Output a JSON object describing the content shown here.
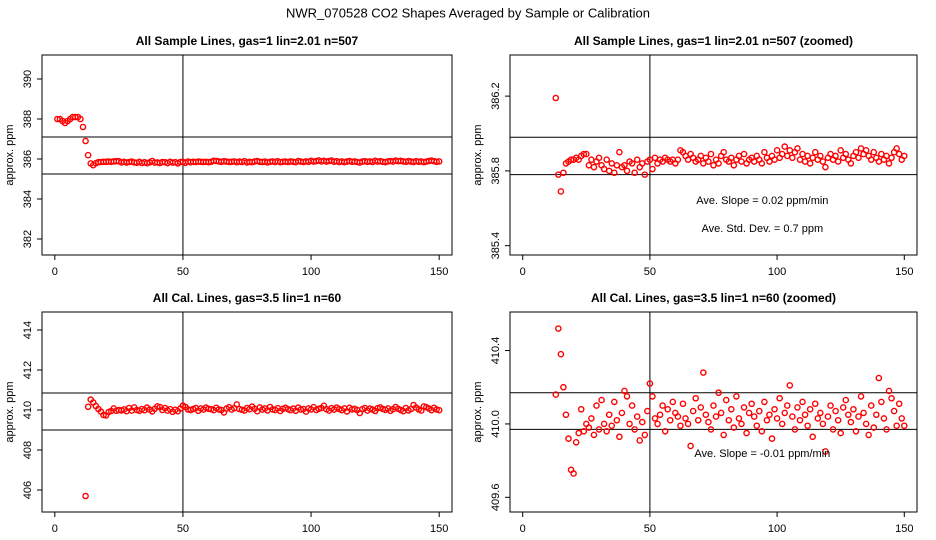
{
  "title": "NWR_070528  CO2 Shapes Averaged by Sample or Calibration",
  "chart_data": [
    {
      "type": "scatter",
      "title": "All Sample Lines, gas=1 lin=2.01 n=507",
      "ylabel": "approx. ppm",
      "color": "#ff0000",
      "xlim": [
        -5,
        155
      ],
      "ylim": [
        381.2,
        391.2
      ],
      "xticks": [
        0,
        50,
        100,
        150
      ],
      "yticks": [
        382,
        384,
        386,
        388,
        390
      ],
      "hlines": [
        387.1,
        385.25
      ],
      "vlines": [
        50
      ],
      "annotations": [],
      "x": [
        1,
        2,
        3,
        4,
        5,
        6,
        7,
        8,
        9,
        10,
        11,
        12,
        13,
        14,
        15,
        16,
        17,
        18,
        19,
        20,
        21,
        22,
        23,
        24,
        25,
        26,
        27,
        28,
        29,
        30,
        31,
        32,
        33,
        34,
        35,
        36,
        37,
        38,
        39,
        40,
        41,
        42,
        43,
        44,
        45,
        46,
        47,
        48,
        49,
        50,
        51,
        52,
        53,
        54,
        55,
        56,
        57,
        58,
        59,
        60,
        61,
        62,
        63,
        64,
        65,
        66,
        67,
        68,
        69,
        70,
        71,
        72,
        73,
        74,
        75,
        76,
        77,
        78,
        79,
        80,
        81,
        82,
        83,
        84,
        85,
        86,
        87,
        88,
        89,
        90,
        91,
        92,
        93,
        94,
        95,
        96,
        97,
        98,
        99,
        100,
        101,
        102,
        103,
        104,
        105,
        106,
        107,
        108,
        109,
        110,
        111,
        112,
        113,
        114,
        115,
        116,
        117,
        118,
        119,
        120,
        121,
        122,
        123,
        124,
        125,
        126,
        127,
        128,
        129,
        130,
        131,
        132,
        133,
        134,
        135,
        136,
        137,
        138,
        139,
        140,
        141,
        142,
        143,
        144,
        145,
        146,
        147,
        148,
        149,
        150
      ],
      "values": [
        388.0,
        388.0,
        387.9,
        387.8,
        387.9,
        388.0,
        388.1,
        388.1,
        388.1,
        388.0,
        387.6,
        386.9,
        386.19,
        385.78,
        385.69,
        385.79,
        385.84,
        385.85,
        385.86,
        385.86,
        385.87,
        385.86,
        385.88,
        385.89,
        385.89,
        385.83,
        385.86,
        385.82,
        385.85,
        385.87,
        385.83,
        385.81,
        385.86,
        385.8,
        385.84,
        385.79,
        385.83,
        385.9,
        385.82,
        385.83,
        385.8,
        385.85,
        385.84,
        385.79,
        385.86,
        385.82,
        385.84,
        385.78,
        385.85,
        385.86,
        385.81,
        385.87,
        385.84,
        385.86,
        385.85,
        385.87,
        385.86,
        385.85,
        385.86,
        385.84,
        385.86,
        385.91,
        385.9,
        385.88,
        385.86,
        385.89,
        385.87,
        385.85,
        385.86,
        385.88,
        385.84,
        385.87,
        385.85,
        385.89,
        385.83,
        385.86,
        385.84,
        385.88,
        385.9,
        385.86,
        385.85,
        385.87,
        385.83,
        385.86,
        385.88,
        385.85,
        385.89,
        385.84,
        385.86,
        385.87,
        385.85,
        385.88,
        385.86,
        385.84,
        385.9,
        385.87,
        385.85,
        385.88,
        385.86,
        385.91,
        385.87,
        385.89,
        385.93,
        385.88,
        385.91,
        385.87,
        385.9,
        385.92,
        385.86,
        385.89,
        385.85,
        385.88,
        385.84,
        385.87,
        385.9,
        385.86,
        385.88,
        385.85,
        385.82,
        385.87,
        385.89,
        385.86,
        385.88,
        385.85,
        385.91,
        385.87,
        385.89,
        385.86,
        385.84,
        385.88,
        385.9,
        385.87,
        385.92,
        385.89,
        385.91,
        385.88,
        385.86,
        385.9,
        385.87,
        385.85,
        385.89,
        385.86,
        385.88,
        385.84,
        385.87,
        385.9,
        385.92,
        385.89,
        385.86,
        385.88
      ]
    },
    {
      "type": "scatter",
      "title": "All Sample Lines, gas=1 lin=2.01 n=507 (zoomed)",
      "ylabel": "approx. ppm",
      "color": "#ff0000",
      "xlim": [
        -5,
        155
      ],
      "ylim": [
        385.35,
        386.42
      ],
      "xticks": [
        0,
        50,
        100,
        150
      ],
      "yticks": [
        385.4,
        385.8,
        386.2
      ],
      "hlines": [
        385.98,
        385.78
      ],
      "vlines": [
        50
      ],
      "annotations": [
        "Ave. Slope =  0.02  ppm/min",
        "Ave. Std. Dev. =  0.7  ppm"
      ],
      "x": [
        13,
        14,
        15,
        16,
        17,
        18,
        19,
        20,
        21,
        22,
        23,
        24,
        25,
        26,
        27,
        28,
        29,
        30,
        31,
        32,
        33,
        34,
        35,
        36,
        37,
        38,
        39,
        40,
        41,
        42,
        43,
        44,
        45,
        46,
        47,
        48,
        49,
        50,
        51,
        52,
        53,
        54,
        55,
        56,
        57,
        58,
        59,
        60,
        61,
        62,
        63,
        64,
        65,
        66,
        67,
        68,
        69,
        70,
        71,
        72,
        73,
        74,
        75,
        76,
        77,
        78,
        79,
        80,
        81,
        82,
        83,
        84,
        85,
        86,
        87,
        88,
        89,
        90,
        91,
        92,
        93,
        94,
        95,
        96,
        97,
        98,
        99,
        100,
        101,
        102,
        103,
        104,
        105,
        106,
        107,
        108,
        109,
        110,
        111,
        112,
        113,
        114,
        115,
        116,
        117,
        118,
        119,
        120,
        121,
        122,
        123,
        124,
        125,
        126,
        127,
        128,
        129,
        130,
        131,
        132,
        133,
        134,
        135,
        136,
        137,
        138,
        139,
        140,
        141,
        142,
        143,
        144,
        145,
        146,
        147,
        148,
        149,
        150
      ],
      "values": [
        386.19,
        385.78,
        385.69,
        385.79,
        385.84,
        385.85,
        385.86,
        385.86,
        385.87,
        385.86,
        385.88,
        385.89,
        385.89,
        385.83,
        385.86,
        385.82,
        385.85,
        385.87,
        385.83,
        385.81,
        385.86,
        385.8,
        385.84,
        385.79,
        385.83,
        385.9,
        385.82,
        385.83,
        385.8,
        385.85,
        385.84,
        385.79,
        385.86,
        385.82,
        385.84,
        385.78,
        385.85,
        385.86,
        385.81,
        385.87,
        385.84,
        385.86,
        385.85,
        385.87,
        385.86,
        385.85,
        385.86,
        385.84,
        385.86,
        385.91,
        385.9,
        385.88,
        385.86,
        385.89,
        385.87,
        385.85,
        385.86,
        385.88,
        385.84,
        385.87,
        385.85,
        385.89,
        385.83,
        385.86,
        385.84,
        385.88,
        385.9,
        385.86,
        385.85,
        385.87,
        385.83,
        385.86,
        385.88,
        385.85,
        385.89,
        385.84,
        385.86,
        385.87,
        385.85,
        385.88,
        385.86,
        385.84,
        385.9,
        385.87,
        385.85,
        385.88,
        385.86,
        385.91,
        385.87,
        385.89,
        385.93,
        385.88,
        385.91,
        385.87,
        385.9,
        385.92,
        385.86,
        385.89,
        385.85,
        385.88,
        385.84,
        385.87,
        385.9,
        385.86,
        385.88,
        385.85,
        385.82,
        385.87,
        385.89,
        385.86,
        385.88,
        385.85,
        385.91,
        385.87,
        385.89,
        385.86,
        385.84,
        385.88,
        385.9,
        385.87,
        385.92,
        385.89,
        385.91,
        385.88,
        385.86,
        385.9,
        385.87,
        385.85,
        385.89,
        385.86,
        385.88,
        385.84,
        385.87,
        385.9,
        385.92,
        385.89,
        385.86,
        385.88
      ]
    },
    {
      "type": "scatter",
      "title": "All Cal. Lines, gas=3.5 lin=1 n=60",
      "ylabel": "approx. ppm",
      "color": "#ff0000",
      "xlim": [
        -5,
        155
      ],
      "ylim": [
        404.9,
        414.9
      ],
      "xticks": [
        0,
        50,
        100,
        150
      ],
      "yticks": [
        406,
        408,
        410,
        412,
        414
      ],
      "hlines": [
        410.85,
        409.0
      ],
      "vlines": [
        50
      ],
      "annotations": [],
      "x": [
        12,
        13,
        14,
        15,
        16,
        17,
        18,
        19,
        20,
        21,
        22,
        23,
        24,
        25,
        26,
        27,
        28,
        29,
        30,
        31,
        32,
        33,
        34,
        35,
        36,
        37,
        38,
        39,
        40,
        41,
        42,
        43,
        44,
        45,
        46,
        47,
        48,
        49,
        50,
        51,
        52,
        53,
        54,
        55,
        56,
        57,
        58,
        59,
        60,
        61,
        62,
        63,
        64,
        65,
        66,
        67,
        68,
        69,
        70,
        71,
        72,
        73,
        74,
        75,
        76,
        77,
        78,
        79,
        80,
        81,
        82,
        83,
        84,
        85,
        86,
        87,
        88,
        89,
        90,
        91,
        92,
        93,
        94,
        95,
        96,
        97,
        98,
        99,
        100,
        101,
        102,
        103,
        104,
        105,
        106,
        107,
        108,
        109,
        110,
        111,
        112,
        113,
        114,
        115,
        116,
        117,
        118,
        119,
        120,
        121,
        122,
        123,
        124,
        125,
        126,
        127,
        128,
        129,
        130,
        131,
        132,
        133,
        134,
        135,
        136,
        137,
        138,
        139,
        140,
        141,
        142,
        143,
        144,
        145,
        146,
        147,
        148,
        149,
        150
      ],
      "values": [
        405.7,
        410.16,
        410.52,
        410.38,
        410.2,
        410.05,
        409.92,
        409.75,
        409.73,
        409.9,
        409.95,
        410.08,
        409.96,
        410.0,
        409.98,
        410.03,
        409.94,
        410.1,
        409.97,
        410.13,
        410.0,
        409.96,
        410.05,
        409.99,
        410.12,
        410.02,
        409.93,
        410.06,
        410.18,
        410.15,
        410.0,
        410.1,
        409.97,
        410.04,
        409.91,
        410.01,
        409.94,
        410.07,
        410.22,
        410.15,
        410.03,
        410.0,
        410.05,
        410.1,
        409.96,
        410.08,
        410.02,
        410.12,
        410.06,
        410.04,
        409.99,
        410.11,
        410.03,
        410.0,
        409.88,
        410.07,
        410.14,
        410.02,
        410.09,
        410.28,
        410.05,
        410.01,
        409.97,
        410.1,
        410.04,
        410.17,
        410.06,
        409.94,
        410.13,
        410.02,
        410.08,
        409.98,
        410.15,
        410.03,
        410.0,
        410.09,
        409.95,
        410.06,
        410.11,
        410.04,
        409.99,
        410.07,
        409.96,
        410.12,
        410.02,
        410.05,
        409.92,
        410.08,
        410.03,
        410.14,
        410.0,
        410.06,
        410.1,
        410.21,
        410.04,
        409.97,
        410.09,
        410.02,
        410.12,
        410.05,
        409.99,
        410.08,
        409.93,
        410.11,
        410.03,
        410.06,
        410.0,
        409.85,
        410.04,
        410.1,
        409.97,
        410.07,
        410.02,
        409.95,
        410.09,
        410.13,
        410.05,
        410.01,
        410.08,
        409.96,
        410.04,
        410.15,
        410.06,
        410.0,
        409.94,
        410.1,
        409.98,
        410.05,
        410.25,
        410.12,
        410.03,
        409.97,
        410.18,
        410.14,
        410.07,
        409.99,
        410.11,
        410.03,
        409.99
      ]
    },
    {
      "type": "scatter",
      "title": "All Cal. Lines, gas=3.5 lin=1 n=60 (zoomed)",
      "ylabel": "approx. ppm",
      "color": "#ff0000",
      "xlim": [
        -5,
        155
      ],
      "ylim": [
        409.52,
        410.61
      ],
      "xticks": [
        0,
        50,
        100,
        150
      ],
      "yticks": [
        409.6,
        {
          "value": 410,
          "label": "410.0"
        },
        410.4
      ],
      "hlines": [
        410.17,
        409.97
      ],
      "vlines": [
        50
      ],
      "annotations": [
        "Ave. Slope =  -0.01  ppm/min"
      ],
      "x": [
        13,
        14,
        15,
        16,
        17,
        18,
        19,
        20,
        21,
        22,
        23,
        24,
        25,
        26,
        27,
        28,
        29,
        30,
        31,
        32,
        33,
        34,
        35,
        36,
        37,
        38,
        39,
        40,
        41,
        42,
        43,
        44,
        45,
        46,
        47,
        48,
        49,
        50,
        51,
        52,
        53,
        54,
        55,
        56,
        57,
        58,
        59,
        60,
        61,
        62,
        63,
        64,
        65,
        66,
        67,
        68,
        69,
        70,
        71,
        72,
        73,
        74,
        75,
        76,
        77,
        78,
        79,
        80,
        81,
        82,
        83,
        84,
        85,
        86,
        87,
        88,
        89,
        90,
        91,
        92,
        93,
        94,
        95,
        96,
        97,
        98,
        99,
        100,
        101,
        102,
        103,
        104,
        105,
        106,
        107,
        108,
        109,
        110,
        111,
        112,
        113,
        114,
        115,
        116,
        117,
        118,
        119,
        120,
        121,
        122,
        123,
        124,
        125,
        126,
        127,
        128,
        129,
        130,
        131,
        132,
        133,
        134,
        135,
        136,
        137,
        138,
        139,
        140,
        141,
        142,
        143,
        144,
        145,
        146,
        147,
        148,
        149,
        150
      ],
      "values": [
        410.16,
        410.52,
        410.38,
        410.2,
        410.05,
        409.92,
        409.75,
        409.73,
        409.9,
        409.95,
        410.08,
        409.96,
        410.0,
        409.98,
        410.03,
        409.94,
        410.1,
        409.97,
        410.13,
        410.0,
        409.96,
        410.05,
        409.99,
        410.12,
        410.02,
        409.93,
        410.06,
        410.18,
        410.15,
        410.0,
        410.1,
        409.97,
        410.04,
        409.91,
        410.01,
        409.94,
        410.07,
        410.22,
        410.15,
        410.03,
        410.0,
        410.05,
        410.1,
        409.96,
        410.08,
        410.02,
        410.12,
        410.06,
        410.04,
        409.99,
        410.11,
        410.03,
        410.0,
        409.88,
        410.07,
        410.14,
        410.02,
        410.09,
        410.28,
        410.05,
        410.01,
        409.97,
        410.1,
        410.04,
        410.17,
        410.06,
        409.94,
        410.13,
        410.02,
        410.08,
        409.98,
        410.15,
        410.03,
        410.0,
        410.09,
        409.95,
        410.06,
        410.11,
        410.04,
        409.99,
        410.07,
        409.96,
        410.12,
        410.02,
        410.05,
        409.92,
        410.08,
        410.03,
        410.14,
        410.0,
        410.06,
        410.1,
        410.21,
        410.04,
        409.97,
        410.09,
        410.02,
        410.12,
        410.05,
        409.99,
        410.08,
        409.93,
        410.11,
        410.03,
        410.06,
        410.0,
        409.85,
        410.04,
        410.1,
        409.97,
        410.07,
        410.02,
        409.95,
        410.09,
        410.13,
        410.05,
        410.01,
        410.08,
        409.96,
        410.04,
        410.15,
        410.06,
        410.0,
        409.94,
        410.1,
        409.98,
        410.05,
        410.25,
        410.12,
        410.03,
        409.97,
        410.18,
        410.14,
        410.07,
        409.99,
        410.11,
        410.03,
        409.99
      ]
    }
  ]
}
